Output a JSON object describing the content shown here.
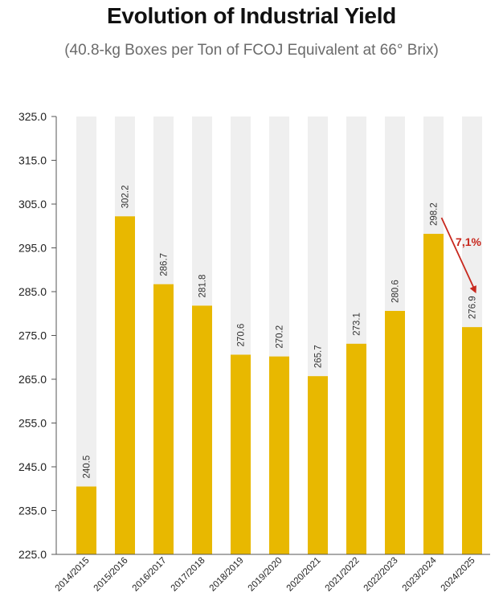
{
  "chart_data": {
    "type": "bar",
    "title": "Evolution of Industrial Yield",
    "subtitle": "(40.8-kg Boxes per Ton of FCOJ Equivalent at 66° Brix)",
    "categories": [
      "2014/2015",
      "2015/2016",
      "2016/2017",
      "2017/2018",
      "2018/2019",
      "2019/2020",
      "2020/2021",
      "2021/2022",
      "2022/2023",
      "2023/2024",
      "2024/2025"
    ],
    "values": [
      240.5,
      302.2,
      286.7,
      281.8,
      270.6,
      270.2,
      265.7,
      273.1,
      280.6,
      298.2,
      276.9
    ],
    "value_labels": [
      "240.5",
      "302.2",
      "286.7",
      "281.8",
      "270.6",
      "270.2",
      "265.7",
      "273.1",
      "280.6",
      "298.2",
      "276.9"
    ],
    "ylim": [
      225,
      325
    ],
    "yticks": [
      "225.0",
      "235.0",
      "245.0",
      "255.0",
      "265.0",
      "275.0",
      "285.0",
      "295.0",
      "305.0",
      "315.0",
      "325.0"
    ],
    "xlabel": "",
    "ylabel": "",
    "annotation": {
      "text": "7,1%",
      "from_category": "2023/2024",
      "to_category": "2024/2025"
    },
    "colors": {
      "bar": "#e8b800",
      "background_bar": "#efefef",
      "axis": "#555555",
      "annotation": "#c8281e"
    }
  }
}
